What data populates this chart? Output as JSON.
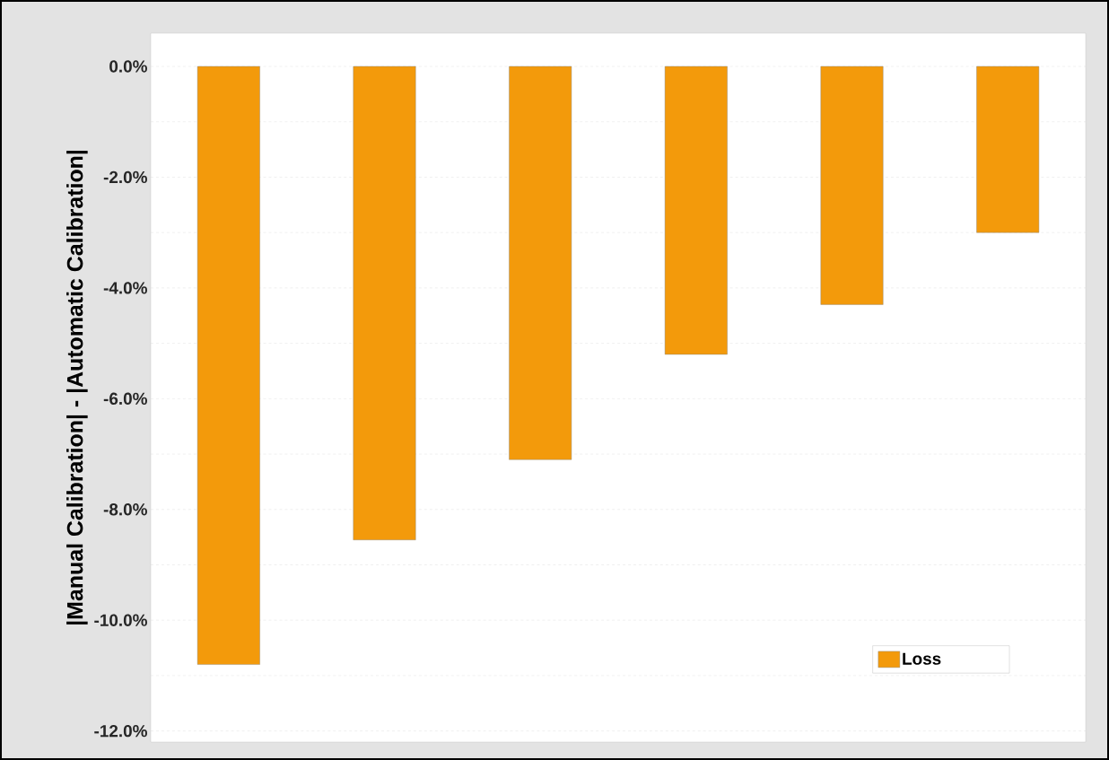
{
  "chart_data": {
    "type": "bar",
    "ylabel": "|Manual Calibration| - |Automatic Calibration|",
    "categories": [
      null,
      null,
      null,
      null,
      null,
      null
    ],
    "series": [
      {
        "name": "Loss",
        "color": "#f39a0b",
        "values": [
          -10.8,
          -8.55,
          -7.1,
          -5.2,
          -4.3,
          -3.0
        ]
      }
    ],
    "ylim": [
      -12.2,
      0.6
    ],
    "yticks": [
      {
        "value": -12,
        "label": "-12.0%"
      },
      {
        "value": -11,
        "label": null
      },
      {
        "value": -10,
        "label": "-10.0%"
      },
      {
        "value": -9,
        "label": null
      },
      {
        "value": -8,
        "label": "-8.0%"
      },
      {
        "value": -7,
        "label": null
      },
      {
        "value": -6,
        "label": "-6.0%"
      },
      {
        "value": -5,
        "label": null
      },
      {
        "value": -4,
        "label": "-4.0%"
      },
      {
        "value": -3,
        "label": null
      },
      {
        "value": -2,
        "label": "-2.0%"
      },
      {
        "value": -1,
        "label": null
      },
      {
        "value": 0,
        "label": "0.0%"
      }
    ],
    "grid": "y",
    "legend": "bottom right"
  }
}
